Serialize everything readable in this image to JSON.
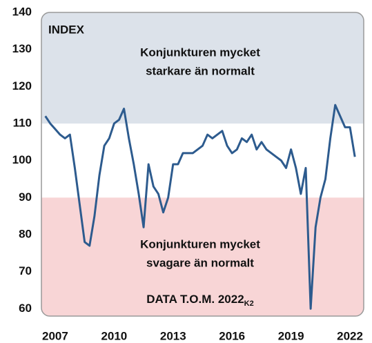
{
  "chart_data": {
    "type": "line",
    "annotations": {
      "index": "INDEX",
      "strong": [
        "Konjunkturen mycket",
        "starkare än normalt"
      ],
      "weak": [
        "Konjunkturen mycket",
        "svagare än normalt"
      ],
      "data_until": "DATA T.O.M. 2022",
      "data_until_sub": "K2"
    },
    "x": [
      2006.5,
      2006.75,
      2007,
      2007.25,
      2007.5,
      2007.75,
      2008,
      2008.25,
      2008.5,
      2008.75,
      2009,
      2009.25,
      2009.5,
      2009.75,
      2010,
      2010.25,
      2010.5,
      2010.75,
      2011,
      2011.25,
      2011.5,
      2011.75,
      2012,
      2012.25,
      2012.5,
      2012.75,
      2013,
      2013.25,
      2013.5,
      2013.75,
      2014,
      2014.25,
      2014.5,
      2014.75,
      2015,
      2015.25,
      2015.5,
      2015.75,
      2016,
      2016.25,
      2016.5,
      2016.75,
      2017,
      2017.25,
      2017.5,
      2017.75,
      2018,
      2018.25,
      2018.5,
      2018.75,
      2019,
      2019.25,
      2019.5,
      2019.75,
      2020,
      2020.25,
      2020.5,
      2020.75,
      2021,
      2021.25,
      2021.5,
      2021.75,
      2022,
      2022.25
    ],
    "series": [
      {
        "color": "#2d5b8e",
        "values": [
          112,
          110,
          108.5,
          107,
          106,
          107,
          98,
          88,
          78,
          77,
          85,
          96,
          104,
          106,
          110,
          111,
          114,
          106,
          99,
          91,
          82,
          99,
          93,
          91,
          86,
          90,
          99,
          99,
          102,
          102,
          102,
          103,
          104,
          107,
          106,
          107,
          108,
          104,
          102,
          103,
          106,
          105,
          107,
          103,
          105,
          103,
          102,
          101,
          100,
          98,
          103,
          98,
          91,
          98,
          60,
          82,
          90,
          95,
          106,
          115,
          112,
          109,
          109,
          101
        ]
      }
    ],
    "bands": [
      {
        "from": 110,
        "to": 140,
        "color": "#dce2ea"
      },
      {
        "from": 58,
        "to": 90,
        "color": "#f8d5d6"
      }
    ],
    "xlim": [
      2006.3,
      2022.7
    ],
    "xticks": [
      2007,
      2010,
      2013,
      2016,
      2019,
      2022
    ],
    "ylim": [
      58,
      140
    ],
    "yticks": [
      60,
      70,
      80,
      90,
      100,
      110,
      120,
      130,
      140
    ]
  }
}
